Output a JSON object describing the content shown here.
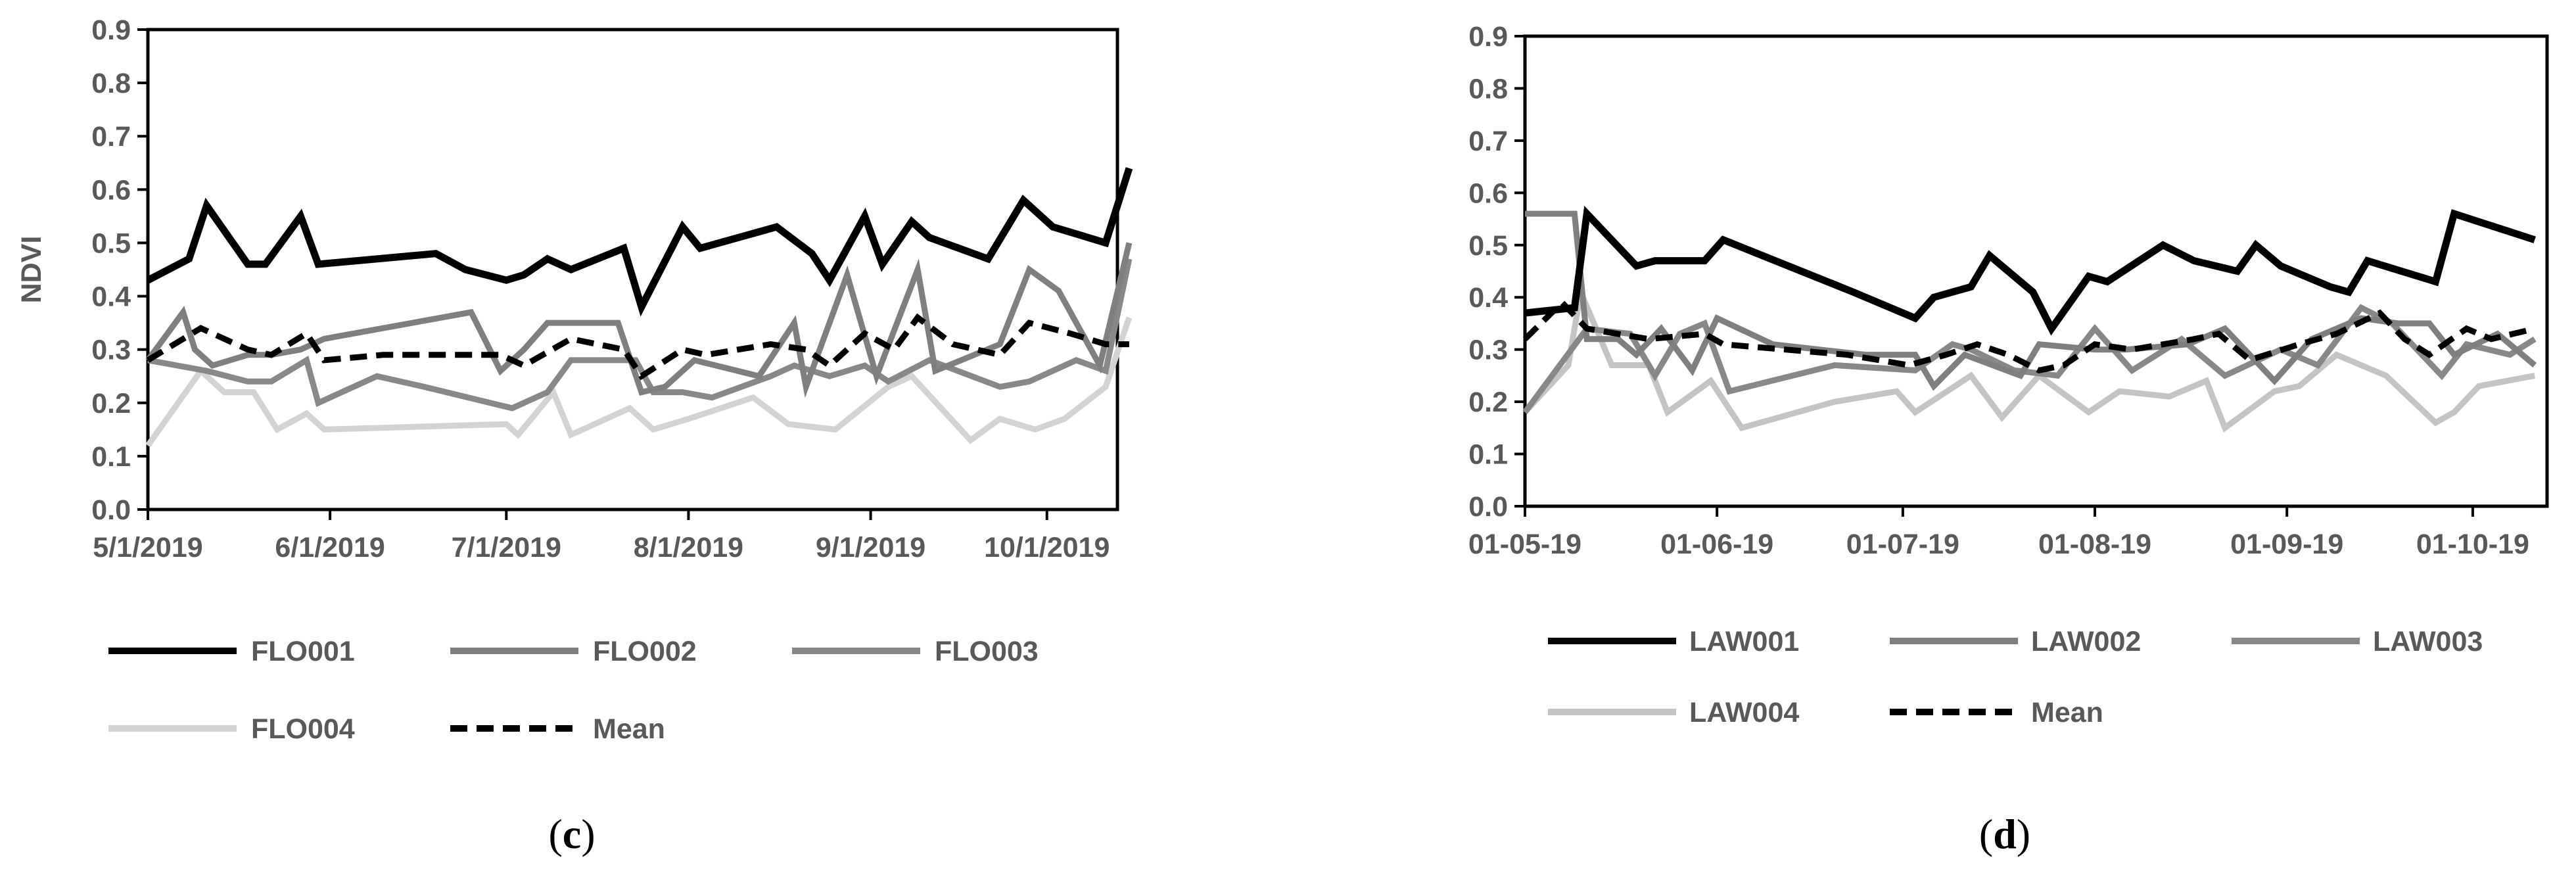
{
  "chart_data": [
    {
      "type": "line",
      "panel": "c",
      "caption": {
        "open": "(",
        "letter": "c",
        "close": ")"
      },
      "xlabel": "",
      "ylabel": "NDVI",
      "ylim": [
        0,
        0.9
      ],
      "yticks": [
        "0.0",
        "0.1",
        "0.2",
        "0.3",
        "0.4",
        "0.5",
        "0.6",
        "0.7",
        "0.8",
        "0.9"
      ],
      "xlim": [
        0,
        165
      ],
      "xticks": [
        {
          "label": "5/1/2019",
          "day": 0
        },
        {
          "label": "6/1/2019",
          "day": 31
        },
        {
          "label": "7/1/2019",
          "day": 61
        },
        {
          "label": "8/1/2019",
          "day": 92
        },
        {
          "label": "9/1/2019",
          "day": 123
        },
        {
          "label": "10/1/2019",
          "day": 153
        }
      ],
      "legend_rows": [
        [
          0,
          1,
          2
        ],
        [
          3,
          4
        ]
      ],
      "series": [
        {
          "name": "FLO001",
          "color": "#000000",
          "dash": false,
          "x": [
            0,
            7,
            10,
            17,
            20,
            26,
            29,
            49,
            54,
            61,
            64,
            68,
            72,
            81,
            84,
            91,
            94,
            107,
            113,
            116,
            122,
            125,
            130,
            133,
            143,
            149,
            154,
            163,
            167
          ],
          "y": [
            0.43,
            0.47,
            0.57,
            0.46,
            0.46,
            0.55,
            0.46,
            0.48,
            0.45,
            0.43,
            0.44,
            0.47,
            0.45,
            0.49,
            0.38,
            0.53,
            0.49,
            0.53,
            0.48,
            0.43,
            0.55,
            0.46,
            0.54,
            0.51,
            0.47,
            0.58,
            0.53,
            0.5,
            0.64
          ]
        },
        {
          "name": "FLO002",
          "color": "#7f7f7f",
          "dash": false,
          "x": [
            0,
            6,
            8,
            11,
            17,
            21,
            26,
            30,
            55,
            60,
            64,
            68,
            72,
            80,
            84,
            88,
            93,
            104,
            110,
            112,
            119,
            124,
            131,
            134,
            145,
            150,
            155,
            162,
            167
          ],
          "y": [
            0.28,
            0.37,
            0.3,
            0.27,
            0.29,
            0.29,
            0.3,
            0.32,
            0.37,
            0.26,
            0.3,
            0.35,
            0.35,
            0.35,
            0.22,
            0.23,
            0.28,
            0.25,
            0.35,
            0.23,
            0.44,
            0.25,
            0.45,
            0.26,
            0.31,
            0.45,
            0.41,
            0.27,
            0.5
          ]
        },
        {
          "name": "FLO003",
          "color": "#888888",
          "dash": false,
          "x": [
            0,
            10,
            17,
            21,
            27,
            29,
            39,
            47,
            62,
            68,
            72,
            83,
            86,
            91,
            96,
            106,
            110,
            116,
            122,
            126,
            133,
            145,
            150,
            158,
            163,
            167
          ],
          "y": [
            0.28,
            0.26,
            0.24,
            0.24,
            0.28,
            0.2,
            0.25,
            0.23,
            0.19,
            0.22,
            0.28,
            0.28,
            0.22,
            0.22,
            0.21,
            0.25,
            0.27,
            0.25,
            0.27,
            0.24,
            0.28,
            0.23,
            0.24,
            0.28,
            0.26,
            0.47
          ]
        },
        {
          "name": "FLO004",
          "color": "#d3d3d3",
          "dash": false,
          "x": [
            0,
            9,
            13,
            18,
            22,
            27,
            30,
            61,
            63,
            69,
            72,
            82,
            86,
            92,
            103,
            109,
            117,
            126,
            130,
            140,
            145,
            151,
            156,
            163,
            167
          ],
          "y": [
            0.12,
            0.26,
            0.22,
            0.22,
            0.15,
            0.18,
            0.15,
            0.16,
            0.14,
            0.22,
            0.14,
            0.19,
            0.15,
            0.17,
            0.21,
            0.16,
            0.15,
            0.23,
            0.25,
            0.13,
            0.17,
            0.15,
            0.17,
            0.23,
            0.36
          ]
        },
        {
          "name": "Mean",
          "color": "#000000",
          "dash": true,
          "x": [
            0,
            9,
            17,
            21,
            27,
            30,
            40,
            60,
            64,
            72,
            81,
            84,
            91,
            95,
            106,
            112,
            116,
            122,
            127,
            131,
            137,
            145,
            150,
            157,
            163,
            167
          ],
          "y": [
            0.28,
            0.34,
            0.3,
            0.29,
            0.33,
            0.28,
            0.29,
            0.29,
            0.27,
            0.32,
            0.3,
            0.25,
            0.3,
            0.29,
            0.31,
            0.3,
            0.27,
            0.33,
            0.3,
            0.36,
            0.31,
            0.29,
            0.35,
            0.33,
            0.31,
            0.31
          ]
        }
      ]
    },
    {
      "type": "line",
      "panel": "d",
      "caption": {
        "open": "(",
        "letter": "d",
        "close": ")"
      },
      "xlabel": "",
      "ylabel": "",
      "ylim": [
        0,
        0.9
      ],
      "yticks": [
        "0.0",
        "0.1",
        "0.2",
        "0.3",
        "0.4",
        "0.5",
        "0.6",
        "0.7",
        "0.8",
        "0.9"
      ],
      "xlim": [
        0,
        165
      ],
      "xticks": [
        {
          "label": "01-05-19",
          "day": 0
        },
        {
          "label": "01-06-19",
          "day": 31
        },
        {
          "label": "01-07-19",
          "day": 61
        },
        {
          "label": "01-08-19",
          "day": 92
        },
        {
          "label": "01-09-19",
          "day": 123
        },
        {
          "label": "01-10-19",
          "day": 153
        }
      ],
      "legend_rows": [
        [
          0,
          1,
          2
        ],
        [
          3,
          4
        ]
      ],
      "series": [
        {
          "name": "LAW001",
          "color": "#000000",
          "dash": false,
          "x": [
            0,
            8,
            10,
            18,
            21,
            29,
            32,
            53,
            63,
            66,
            72,
            75,
            82,
            85,
            91,
            94,
            103,
            108,
            115,
            118,
            122,
            130,
            133,
            136,
            147,
            150,
            163
          ],
          "y": [
            0.37,
            0.38,
            0.56,
            0.46,
            0.47,
            0.47,
            0.51,
            0.41,
            0.36,
            0.4,
            0.42,
            0.48,
            0.41,
            0.34,
            0.44,
            0.43,
            0.5,
            0.47,
            0.45,
            0.5,
            0.46,
            0.42,
            0.41,
            0.47,
            0.43,
            0.56,
            0.51
          ]
        },
        {
          "name": "LAW002",
          "color": "#7f7f7f",
          "dash": false,
          "x": [
            0,
            8,
            10,
            15,
            18,
            22,
            27,
            31,
            40,
            55,
            63,
            66,
            71,
            80,
            83,
            92,
            97,
            107,
            113,
            121,
            127,
            135,
            141,
            146,
            150,
            157,
            163
          ],
          "y": [
            0.56,
            0.56,
            0.32,
            0.32,
            0.29,
            0.34,
            0.26,
            0.36,
            0.31,
            0.29,
            0.29,
            0.23,
            0.29,
            0.25,
            0.31,
            0.3,
            0.3,
            0.31,
            0.34,
            0.24,
            0.32,
            0.36,
            0.35,
            0.35,
            0.29,
            0.33,
            0.27
          ]
        },
        {
          "name": "LAW003",
          "color": "#888888",
          "dash": false,
          "x": [
            0,
            10,
            17,
            21,
            25,
            29,
            33,
            50,
            63,
            69,
            72,
            79,
            86,
            92,
            98,
            106,
            113,
            122,
            128,
            135,
            140,
            148,
            152,
            159,
            163
          ],
          "y": [
            0.18,
            0.34,
            0.33,
            0.25,
            0.33,
            0.35,
            0.22,
            0.27,
            0.26,
            0.31,
            0.3,
            0.26,
            0.25,
            0.34,
            0.26,
            0.32,
            0.25,
            0.3,
            0.27,
            0.38,
            0.35,
            0.25,
            0.31,
            0.29,
            0.32
          ]
        },
        {
          "name": "LAW004",
          "color": "#c4c4c4",
          "dash": false,
          "x": [
            0,
            7,
            9,
            14,
            20,
            23,
            30,
            35,
            50,
            60,
            63,
            72,
            77,
            83,
            91,
            96,
            104,
            110,
            113,
            121,
            125,
            131,
            139,
            147,
            150,
            154,
            163
          ],
          "y": [
            0.18,
            0.27,
            0.41,
            0.27,
            0.27,
            0.18,
            0.24,
            0.15,
            0.2,
            0.22,
            0.18,
            0.25,
            0.17,
            0.25,
            0.18,
            0.22,
            0.21,
            0.24,
            0.15,
            0.22,
            0.23,
            0.29,
            0.25,
            0.16,
            0.18,
            0.23,
            0.25
          ]
        },
        {
          "name": "Mean",
          "color": "#000000",
          "dash": true,
          "x": [
            0,
            6,
            10,
            20,
            29,
            32,
            42,
            52,
            62,
            68,
            73,
            78,
            83,
            87,
            92,
            98,
            108,
            112,
            117,
            125,
            131,
            138,
            142,
            146,
            152,
            156,
            163
          ],
          "y": [
            0.32,
            0.39,
            0.34,
            0.32,
            0.33,
            0.31,
            0.3,
            0.29,
            0.27,
            0.29,
            0.31,
            0.29,
            0.26,
            0.27,
            0.31,
            0.3,
            0.32,
            0.33,
            0.28,
            0.31,
            0.33,
            0.37,
            0.32,
            0.29,
            0.34,
            0.32,
            0.34
          ]
        }
      ]
    }
  ]
}
